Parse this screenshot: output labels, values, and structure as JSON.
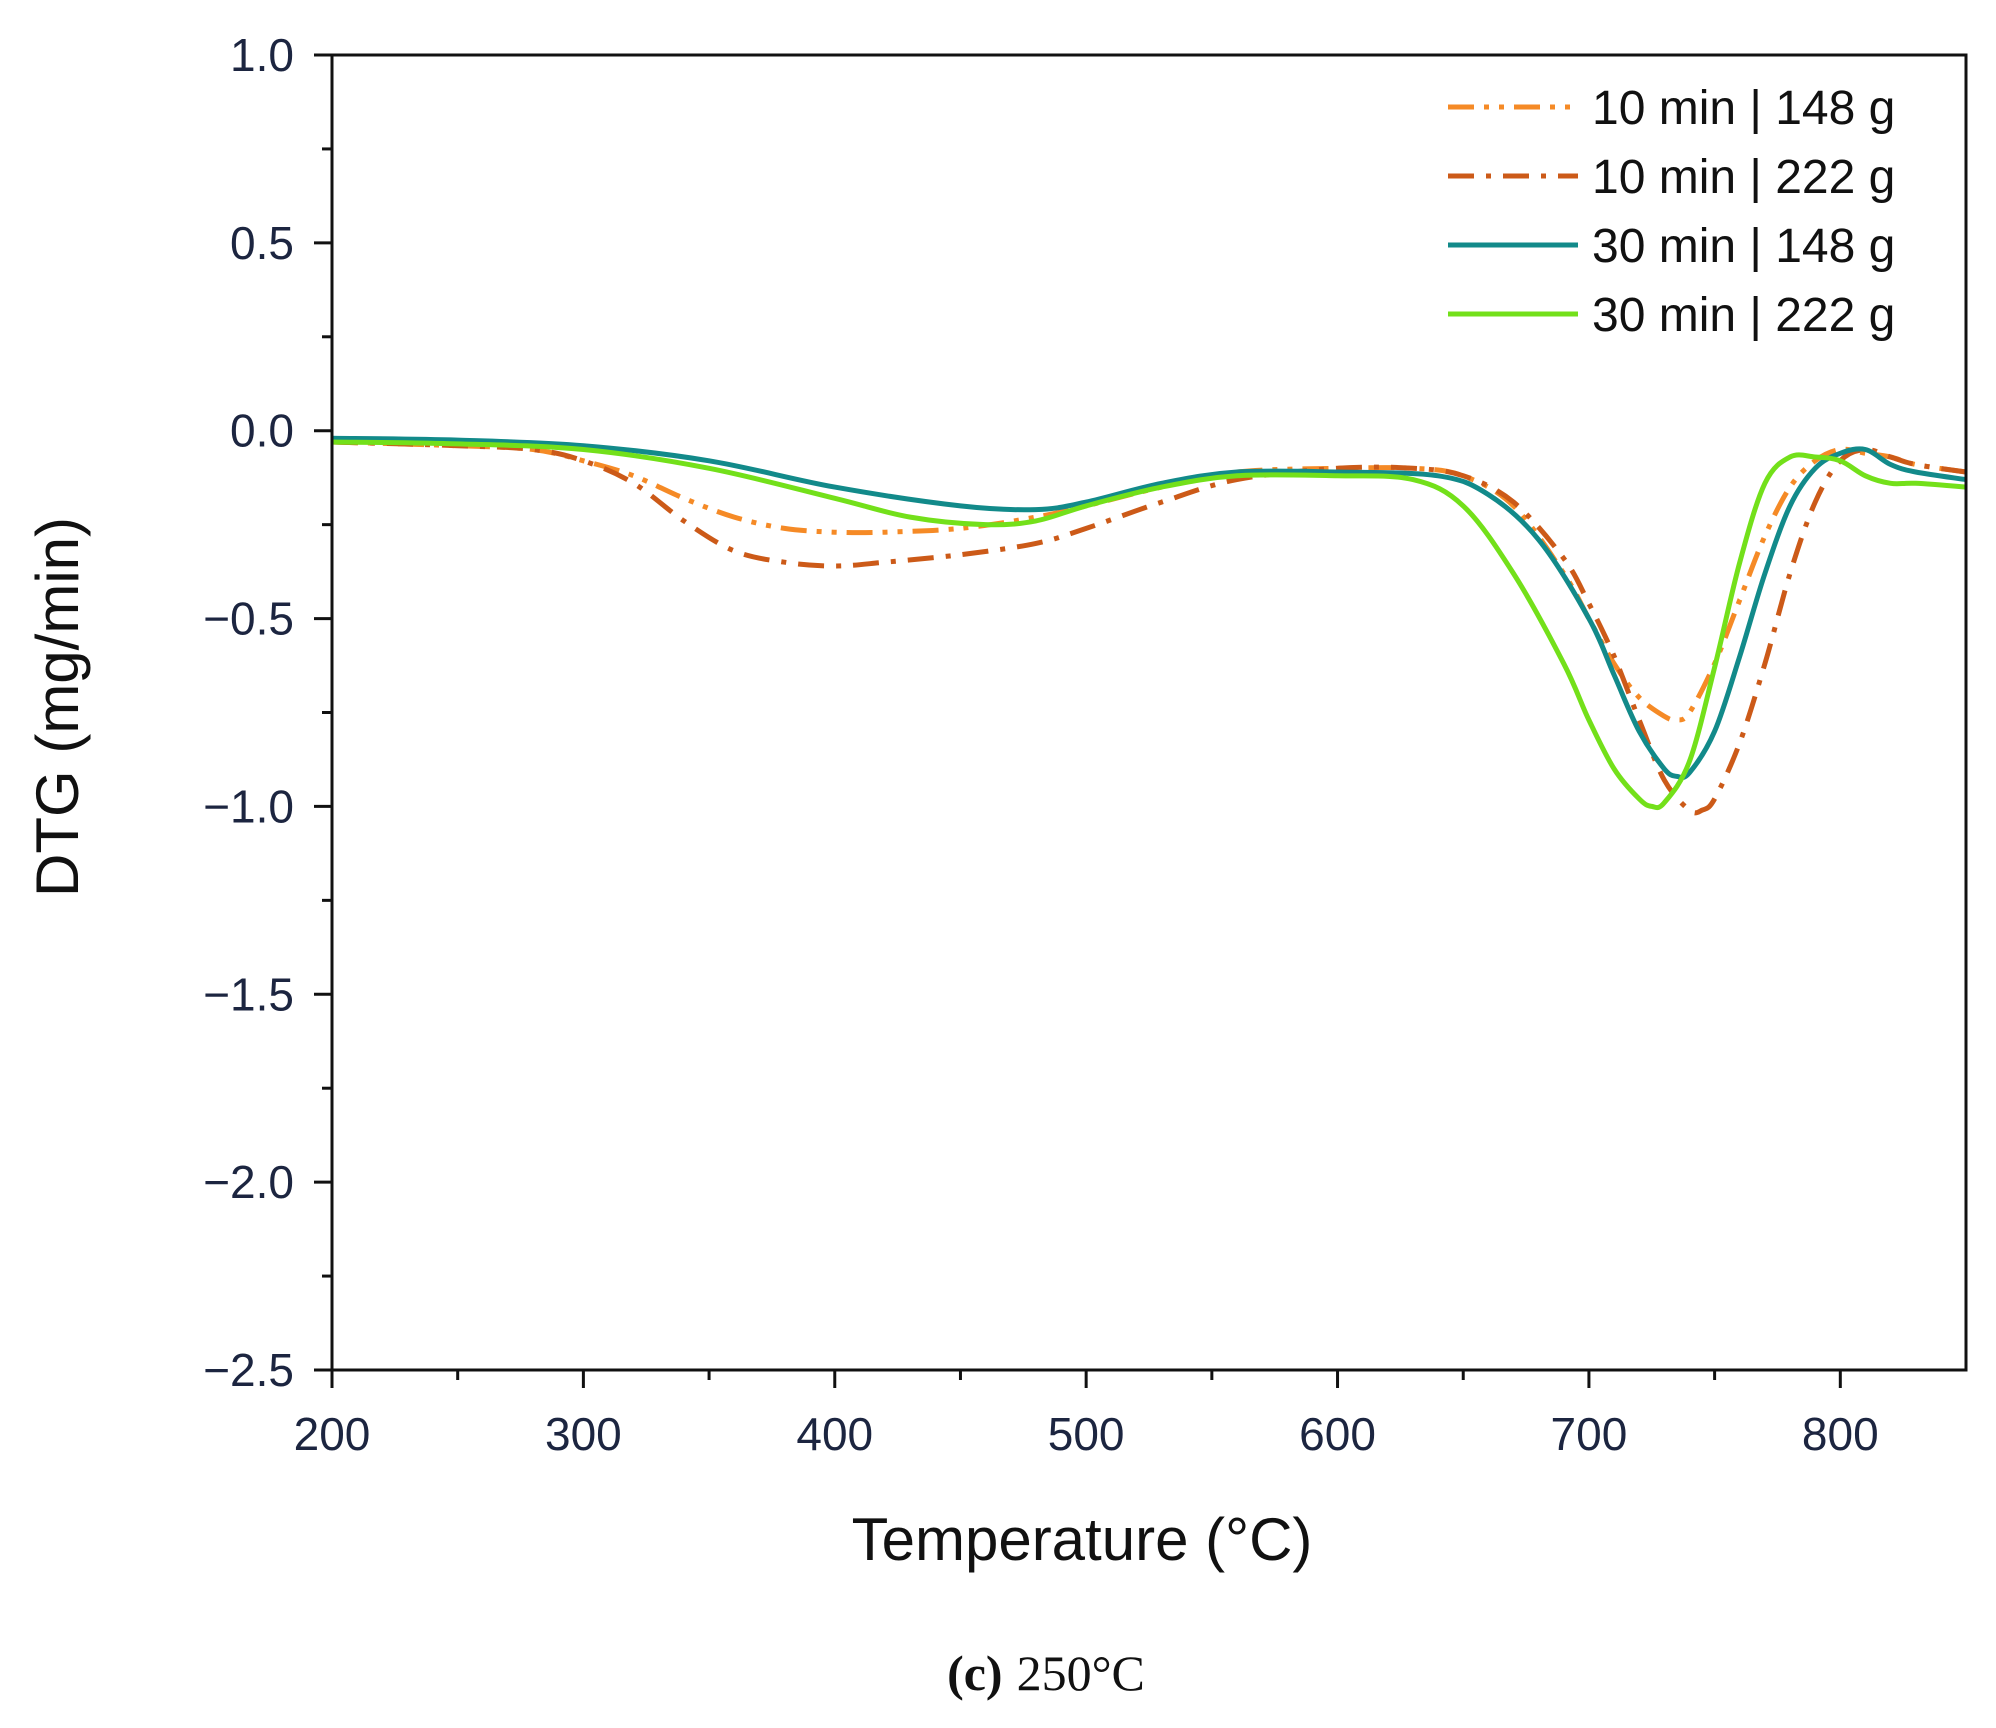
{
  "chart_data": {
    "type": "line",
    "title": "",
    "xlabel": "Temperature (°C)",
    "ylabel": "DTG (mg/min)",
    "xlim": [
      200,
      850
    ],
    "ylim": [
      -2.5,
      1.0
    ],
    "xticks": [
      200,
      300,
      400,
      500,
      600,
      700,
      800
    ],
    "xtick_labels": [
      "200",
      "300",
      "400",
      "500",
      "600",
      "700",
      "800"
    ],
    "yticks": [
      1.0,
      0.5,
      0.0,
      -0.5,
      -1.0,
      -1.5,
      -2.0,
      -2.5
    ],
    "ytick_labels": [
      "1.0",
      "0.5",
      "0.0",
      "−0.5",
      "−1.0",
      "−1.5",
      "−2.0",
      "−2.5"
    ],
    "legend_position": "top-right",
    "grid": false,
    "series": [
      {
        "name": "10 min | 148 g",
        "color": "#f58a26",
        "dash": "dash-dot-dot",
        "x": [
          200,
          250,
          280,
          300,
          320,
          340,
          360,
          380,
          400,
          420,
          450,
          480,
          500,
          530,
          560,
          600,
          630,
          650,
          670,
          690,
          700,
          710,
          720,
          730,
          735,
          740,
          750,
          760,
          770,
          780,
          790,
          800,
          810,
          820,
          830,
          850
        ],
        "y": [
          -0.03,
          -0.04,
          -0.05,
          -0.08,
          -0.12,
          -0.18,
          -0.23,
          -0.26,
          -0.27,
          -0.27,
          -0.26,
          -0.23,
          -0.2,
          -0.15,
          -0.11,
          -0.1,
          -0.1,
          -0.12,
          -0.2,
          -0.38,
          -0.5,
          -0.62,
          -0.71,
          -0.76,
          -0.77,
          -0.75,
          -0.62,
          -0.45,
          -0.28,
          -0.15,
          -0.08,
          -0.05,
          -0.06,
          -0.07,
          -0.09,
          -0.11
        ]
      },
      {
        "name": "10 min | 222 g",
        "color": "#cc5a18",
        "dash": "dash-dot",
        "x": [
          200,
          250,
          280,
          300,
          320,
          340,
          360,
          380,
          400,
          420,
          450,
          480,
          500,
          530,
          560,
          600,
          630,
          650,
          670,
          690,
          700,
          710,
          720,
          730,
          740,
          745,
          750,
          760,
          770,
          780,
          790,
          800,
          810,
          820,
          830,
          850
        ],
        "y": [
          -0.03,
          -0.04,
          -0.05,
          -0.08,
          -0.14,
          -0.24,
          -0.32,
          -0.35,
          -0.36,
          -0.35,
          -0.33,
          -0.3,
          -0.26,
          -0.19,
          -0.13,
          -0.1,
          -0.1,
          -0.12,
          -0.19,
          -0.34,
          -0.46,
          -0.6,
          -0.77,
          -0.93,
          -1.01,
          -1.01,
          -0.98,
          -0.83,
          -0.62,
          -0.38,
          -0.19,
          -0.08,
          -0.05,
          -0.07,
          -0.09,
          -0.11
        ]
      },
      {
        "name": "30 min | 148 g",
        "color": "#128a8a",
        "dash": "solid",
        "x": [
          200,
          250,
          300,
          350,
          400,
          450,
          480,
          500,
          530,
          560,
          600,
          640,
          660,
          680,
          700,
          710,
          720,
          730,
          735,
          740,
          750,
          760,
          770,
          780,
          790,
          800,
          810,
          820,
          830,
          850
        ],
        "y": [
          -0.02,
          -0.025,
          -0.04,
          -0.08,
          -0.15,
          -0.2,
          -0.21,
          -0.19,
          -0.14,
          -0.11,
          -0.11,
          -0.12,
          -0.17,
          -0.29,
          -0.5,
          -0.65,
          -0.8,
          -0.9,
          -0.92,
          -0.91,
          -0.8,
          -0.6,
          -0.38,
          -0.2,
          -0.1,
          -0.06,
          -0.05,
          -0.09,
          -0.11,
          -0.13
        ]
      },
      {
        "name": "30 min | 222 g",
        "color": "#73e01a",
        "dash": "solid",
        "x": [
          200,
          250,
          300,
          350,
          400,
          430,
          460,
          480,
          500,
          530,
          560,
          600,
          630,
          650,
          670,
          690,
          700,
          710,
          720,
          725,
          730,
          740,
          750,
          760,
          770,
          780,
          790,
          800,
          810,
          820,
          830,
          850
        ],
        "y": [
          -0.03,
          -0.035,
          -0.05,
          -0.1,
          -0.18,
          -0.23,
          -0.25,
          -0.24,
          -0.2,
          -0.15,
          -0.12,
          -0.12,
          -0.13,
          -0.2,
          -0.38,
          -0.62,
          -0.77,
          -0.9,
          -0.98,
          -1.0,
          -0.99,
          -0.88,
          -0.63,
          -0.35,
          -0.14,
          -0.07,
          -0.07,
          -0.08,
          -0.12,
          -0.14,
          -0.14,
          -0.15
        ]
      }
    ]
  },
  "caption": {
    "label": "(c)",
    "text": "250°C"
  }
}
